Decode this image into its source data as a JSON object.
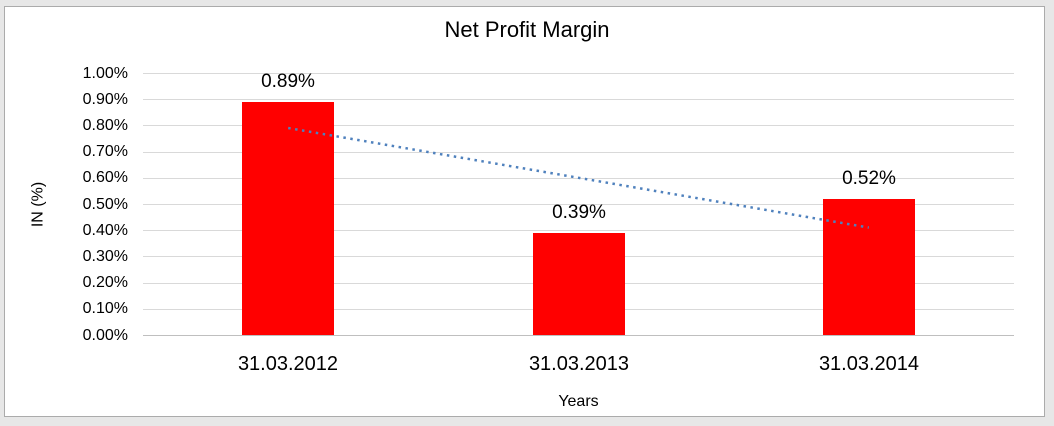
{
  "chart_data": {
    "type": "bar",
    "title": "Net Profit Margin",
    "xlabel": "Years",
    "ylabel": "IN (%)",
    "categories": [
      "31.03.2012",
      "31.03.2013",
      "31.03.2014"
    ],
    "values": [
      0.89,
      0.39,
      0.52
    ],
    "data_labels": [
      "0.89%",
      "0.39%",
      "0.52%"
    ],
    "ytick_labels": [
      "0.00%",
      "0.10%",
      "0.20%",
      "0.30%",
      "0.40%",
      "0.50%",
      "0.60%",
      "0.70%",
      "0.80%",
      "0.90%",
      "1.00%"
    ],
    "ytick_values": [
      0.0,
      0.1,
      0.2,
      0.3,
      0.4,
      0.5,
      0.6,
      0.7,
      0.8,
      0.9,
      1.0
    ],
    "ylim": [
      0,
      1.0
    ],
    "grid": true,
    "legend": "none",
    "bar_color": "#ff0000",
    "gridline_color": "#d9d9d9",
    "axis_line_color": "#bfbfbf",
    "trendline": {
      "type": "linear",
      "style": "dotted",
      "color": "#4f81bd",
      "start_value": 0.79,
      "end_value": 0.41
    }
  }
}
